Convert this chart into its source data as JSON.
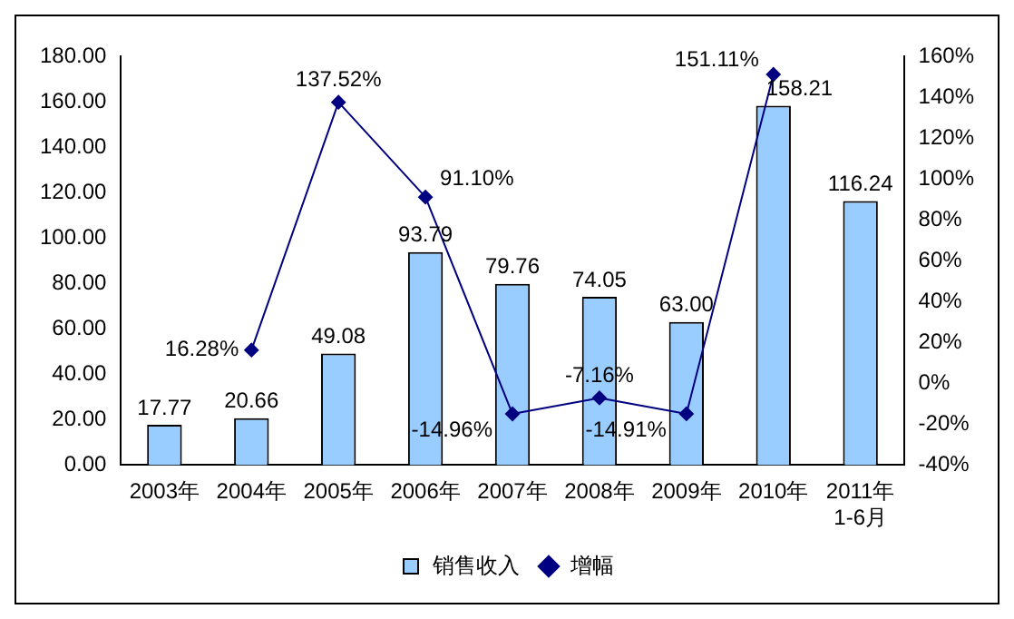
{
  "chart_data": {
    "type": "bar",
    "categories": [
      "2003年",
      "2004年",
      "2005年",
      "2006年",
      "2007年",
      "2008年",
      "2009年",
      "2010年",
      "2011年\n1-6月"
    ],
    "series": [
      {
        "name": "销售收入",
        "color": "#99ccff",
        "values": [
          17.77,
          20.66,
          49.08,
          93.79,
          79.76,
          74.05,
          63.0,
          158.21,
          116.24
        ],
        "value_labels": [
          "17.77",
          "20.66",
          "49.08",
          "93.79",
          "79.76",
          "74.05",
          "63.00",
          "158.21",
          "116.24"
        ]
      },
      {
        "name": "增幅",
        "type": "line",
        "axis": "y2",
        "color": "#000080",
        "values": [
          null,
          16.28,
          137.52,
          91.1,
          -14.96,
          -7.16,
          -14.91,
          151.11,
          null
        ],
        "value_labels": [
          null,
          "16.28%",
          "137.52%",
          "91.10%",
          "-14.96%",
          "-7.16%",
          "-14.91%",
          "151.11%",
          null
        ]
      }
    ],
    "ylim": [
      0,
      180
    ],
    "yticks": [
      {
        "value": 0,
        "label": "0.00"
      },
      {
        "value": 20,
        "label": "20.00"
      },
      {
        "value": 40,
        "label": "40.00"
      },
      {
        "value": 60,
        "label": "60.00"
      },
      {
        "value": 80,
        "label": "80.00"
      },
      {
        "value": 100,
        "label": "100.00"
      },
      {
        "value": 120,
        "label": "120.00"
      },
      {
        "value": 140,
        "label": "140.00"
      },
      {
        "value": 160,
        "label": "160.00"
      },
      {
        "value": 180,
        "label": "180.00"
      }
    ],
    "y2lim": [
      -40,
      160
    ],
    "y2ticks": [
      {
        "value": -40,
        "label": "-40%"
      },
      {
        "value": -20,
        "label": "-20%"
      },
      {
        "value": 0,
        "label": "0%"
      },
      {
        "value": 20,
        "label": "20%"
      },
      {
        "value": 40,
        "label": "40%"
      },
      {
        "value": 60,
        "label": "60%"
      },
      {
        "value": 80,
        "label": "80%"
      },
      {
        "value": 100,
        "label": "100%"
      },
      {
        "value": 120,
        "label": "120%"
      },
      {
        "value": 140,
        "label": "140%"
      },
      {
        "value": 160,
        "label": "160%"
      }
    ],
    "grid": false,
    "legend": "bottom",
    "marker": "diamond",
    "line_style": "solid"
  }
}
